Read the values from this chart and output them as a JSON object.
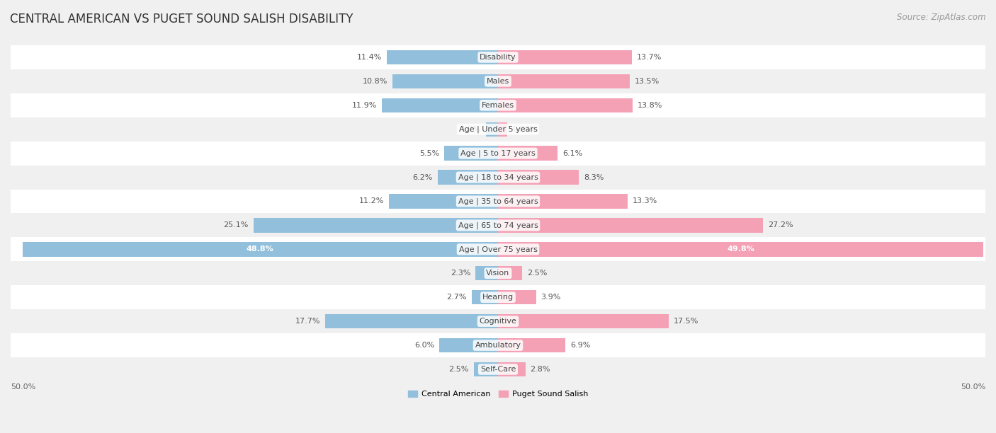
{
  "title": "CENTRAL AMERICAN VS PUGET SOUND SALISH DISABILITY",
  "source": "Source: ZipAtlas.com",
  "categories": [
    "Disability",
    "Males",
    "Females",
    "Age | Under 5 years",
    "Age | 5 to 17 years",
    "Age | 18 to 34 years",
    "Age | 35 to 64 years",
    "Age | 65 to 74 years",
    "Age | Over 75 years",
    "Vision",
    "Hearing",
    "Cognitive",
    "Ambulatory",
    "Self-Care"
  ],
  "left_values": [
    11.4,
    10.8,
    11.9,
    1.2,
    5.5,
    6.2,
    11.2,
    25.1,
    48.8,
    2.3,
    2.7,
    17.7,
    6.0,
    2.5
  ],
  "right_values": [
    13.7,
    13.5,
    13.8,
    0.97,
    6.1,
    8.3,
    13.3,
    27.2,
    49.8,
    2.5,
    3.9,
    17.5,
    6.9,
    2.8
  ],
  "left_label": "Central American",
  "right_label": "Puget Sound Salish",
  "left_color": "#92c0dc",
  "right_color": "#f4a0b5",
  "max_val": 50.0,
  "background_color": "#f0f0f0",
  "row_bg_even": "#ffffff",
  "row_bg_odd": "#f0f0f0",
  "title_fontsize": 12,
  "source_fontsize": 8.5,
  "bar_height": 0.6,
  "label_fontsize": 8.0,
  "value_fontsize": 8.0
}
